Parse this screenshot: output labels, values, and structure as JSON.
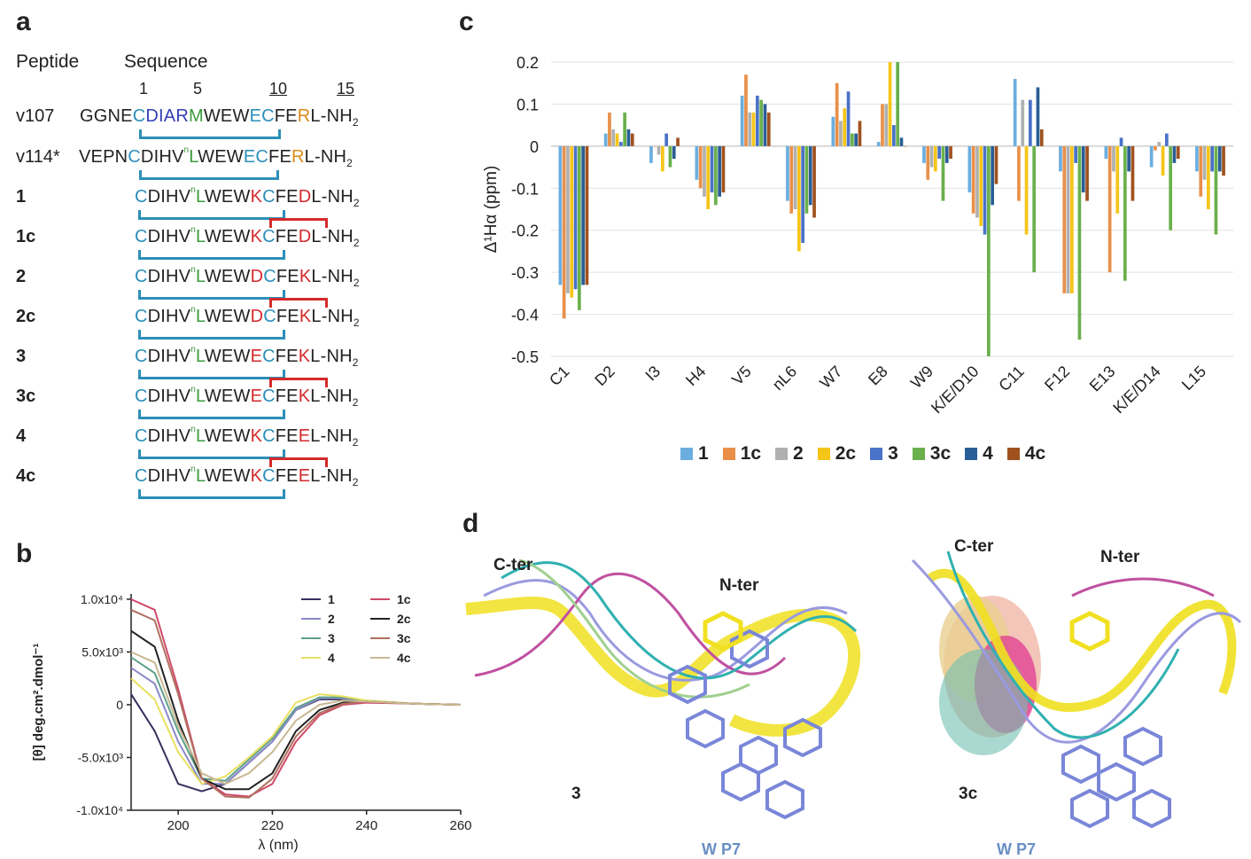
{
  "panels": {
    "a": "a",
    "b": "b",
    "c": "c",
    "d": "d"
  },
  "panel_a": {
    "header_peptide": "Peptide",
    "header_sequence": "Sequence",
    "positions": [
      "1",
      "5",
      "10",
      "15"
    ],
    "rows": [
      {
        "name": "v107",
        "seq": "GGNECDIARMWEWECFERL-NH2"
      },
      {
        "name": "v114*",
        "seq": "VEPNCDIHVnLWEWECFERL-NH2"
      },
      {
        "name": "1",
        "seq": "CDIHVnLWEWKCFEDL-NH2"
      },
      {
        "name": "1c",
        "seq": "CDIHVnLWEWKCFEDL-NH2"
      },
      {
        "name": "2",
        "seq": "CDIHVnLWEWDCFEKL-NH2"
      },
      {
        "name": "2c",
        "seq": "CDIHVnLWEWDCFEKL-NH2"
      },
      {
        "name": "3",
        "seq": "CDIHVnLWEWECFEKL-NH2"
      },
      {
        "name": "3c",
        "seq": "CDIHVnLWEWECFEKL-NH2"
      },
      {
        "name": "4",
        "seq": "CDIHVnLWEWKCFEEL-NH2"
      },
      {
        "name": "4c",
        "seq": "CDIHVnLWEWKCFEEL-NH2"
      }
    ]
  },
  "panel_b": {
    "chart_data": {
      "type": "line",
      "xlabel": "λ (nm)",
      "ylabel": "[θ] deg.cm².dmol⁻¹",
      "xlim": [
        190,
        260
      ],
      "ylim": [
        -10000,
        10500
      ],
      "xticks": [
        "200",
        "220",
        "240",
        "260"
      ],
      "yticks": [
        "1.0x10⁴",
        "5.0x10³",
        "0",
        "-5.0x10³",
        "-1.0x10⁴"
      ],
      "series": [
        {
          "name": "1",
          "color": "#3a2e5e",
          "x": [
            190,
            195,
            200,
            205,
            210,
            215,
            220,
            225,
            230,
            235,
            240,
            250,
            260
          ],
          "y": [
            1000,
            -2500,
            -7500,
            -8200,
            -7500,
            -5500,
            -3500,
            -500,
            500,
            500,
            300,
            100,
            0
          ]
        },
        {
          "name": "2",
          "color": "#8a88c8",
          "x": [
            190,
            195,
            200,
            205,
            210,
            215,
            220,
            225,
            230,
            235,
            240,
            250,
            260
          ],
          "y": [
            3500,
            2000,
            -3500,
            -7500,
            -7500,
            -5500,
            -3500,
            -500,
            600,
            600,
            300,
            100,
            0
          ]
        },
        {
          "name": "3",
          "color": "#5ea08a",
          "x": [
            190,
            195,
            200,
            205,
            210,
            215,
            220,
            225,
            230,
            235,
            240,
            250,
            260
          ],
          "y": [
            4500,
            3000,
            -2500,
            -7000,
            -7200,
            -5200,
            -3200,
            -300,
            700,
            700,
            400,
            100,
            0
          ]
        },
        {
          "name": "4",
          "color": "#e8e060",
          "x": [
            190,
            195,
            200,
            205,
            210,
            215,
            220,
            225,
            230,
            235,
            240,
            250,
            260
          ],
          "y": [
            2500,
            500,
            -4500,
            -7500,
            -6800,
            -5000,
            -3000,
            200,
            1000,
            800,
            400,
            100,
            0
          ]
        },
        {
          "name": "1c",
          "color": "#d04a6a",
          "x": [
            190,
            195,
            200,
            205,
            210,
            215,
            220,
            225,
            230,
            235,
            240,
            250,
            260
          ],
          "y": [
            10000,
            9000,
            1500,
            -7000,
            -8500,
            -8700,
            -7500,
            -3500,
            -1000,
            0,
            200,
            100,
            0
          ]
        },
        {
          "name": "2c",
          "color": "#222222",
          "x": [
            190,
            195,
            200,
            205,
            210,
            215,
            220,
            225,
            230,
            235,
            240,
            250,
            260
          ],
          "y": [
            7000,
            5500,
            -1500,
            -7000,
            -8000,
            -8000,
            -6500,
            -2500,
            -500,
            200,
            300,
            100,
            0
          ]
        },
        {
          "name": "3c",
          "color": "#b07060",
          "x": [
            190,
            195,
            200,
            205,
            210,
            215,
            220,
            225,
            230,
            235,
            240,
            250,
            260
          ],
          "y": [
            9000,
            8000,
            1000,
            -7000,
            -8700,
            -8800,
            -7000,
            -3000,
            -800,
            100,
            300,
            100,
            0
          ]
        },
        {
          "name": "4c",
          "color": "#c8b890",
          "x": [
            190,
            195,
            200,
            205,
            210,
            215,
            220,
            225,
            230,
            235,
            240,
            250,
            260
          ],
          "y": [
            5000,
            4000,
            -2000,
            -6500,
            -7500,
            -6500,
            -4500,
            -1500,
            0,
            400,
            300,
            100,
            0
          ]
        }
      ]
    }
  },
  "panel_c": {
    "chart_data": {
      "type": "bar",
      "ylabel": "Δ¹Hα (ppm)",
      "ylim": [
        -0.5,
        0.2
      ],
      "yticks": [
        "0.2",
        "0.1",
        "0",
        "-0.1",
        "-0.2",
        "-0.3",
        "-0.4",
        "-0.5"
      ],
      "categories": [
        "C1",
        "D2",
        "I3",
        "H4",
        "V5",
        "nL6",
        "W7",
        "E8",
        "W9",
        "K/E/D10",
        "C11",
        "F12",
        "E13",
        "K/E/D14",
        "L15"
      ],
      "series": [
        {
          "name": "1",
          "color": "#6aaee0",
          "values": [
            -0.33,
            0.03,
            -0.04,
            -0.08,
            0.12,
            -0.13,
            0.07,
            0.01,
            -0.04,
            -0.11,
            0.16,
            -0.06,
            -0.03,
            -0.05,
            -0.06
          ]
        },
        {
          "name": "1c",
          "color": "#e8904a",
          "values": [
            -0.41,
            0.08,
            0.0,
            -0.1,
            0.17,
            -0.16,
            0.15,
            0.1,
            -0.08,
            -0.16,
            -0.13,
            -0.35,
            -0.3,
            -0.01,
            -0.12
          ]
        },
        {
          "name": "2",
          "color": "#b0b0b0",
          "values": [
            -0.35,
            0.04,
            -0.02,
            -0.12,
            0.08,
            -0.15,
            0.06,
            0.1,
            -0.05,
            -0.17,
            0.11,
            -0.35,
            -0.06,
            0.01,
            -0.08
          ]
        },
        {
          "name": "2c",
          "color": "#f5c518",
          "values": [
            -0.36,
            0.03,
            -0.06,
            -0.15,
            0.08,
            -0.25,
            0.09,
            0.2,
            -0.06,
            -0.19,
            -0.21,
            -0.35,
            -0.16,
            -0.07,
            -0.15
          ]
        },
        {
          "name": "3",
          "color": "#4a72c8",
          "values": [
            -0.34,
            0.01,
            0.03,
            -0.11,
            0.12,
            -0.23,
            0.13,
            0.05,
            -0.03,
            -0.21,
            0.11,
            -0.04,
            0.02,
            0.03,
            -0.06
          ]
        },
        {
          "name": "3c",
          "color": "#6ab04c",
          "values": [
            -0.39,
            0.08,
            -0.05,
            -0.14,
            0.11,
            -0.16,
            0.03,
            0.2,
            -0.13,
            -0.5,
            -0.3,
            -0.46,
            -0.32,
            -0.2,
            -0.21
          ]
        },
        {
          "name": "4",
          "color": "#2a5e96",
          "values": [
            -0.33,
            0.04,
            -0.03,
            -0.12,
            0.1,
            -0.14,
            0.03,
            0.02,
            -0.04,
            -0.14,
            0.14,
            -0.11,
            -0.06,
            -0.04,
            -0.06
          ]
        },
        {
          "name": "4c",
          "color": "#a0521e",
          "values": [
            -0.33,
            0.03,
            0.02,
            -0.11,
            0.08,
            -0.17,
            0.06,
            0.0,
            -0.03,
            -0.09,
            0.04,
            -0.13,
            -0.13,
            -0.03,
            -0.07
          ]
        }
      ]
    }
  },
  "panel_d": {
    "left": {
      "cter": "C-ter",
      "nter": "N-ter",
      "peptide": "3",
      "wp7": "W P7"
    },
    "right": {
      "cter": "C-ter",
      "nter": "N-ter",
      "peptide": "3c",
      "wp7": "W P7"
    }
  }
}
